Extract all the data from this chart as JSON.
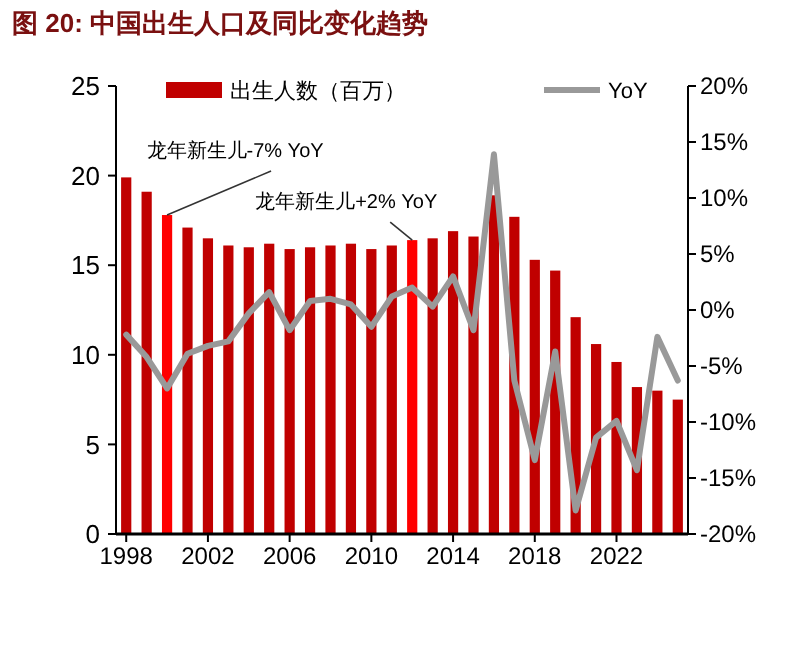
{
  "chart_data": {
    "type": "bar",
    "title": "图 20: 中国出生人口及同比变化趋势",
    "x": [
      1998,
      1999,
      2000,
      2001,
      2002,
      2003,
      2004,
      2005,
      2006,
      2007,
      2008,
      2009,
      2010,
      2011,
      2012,
      2013,
      2014,
      2015,
      2016,
      2017,
      2018,
      2019,
      2020,
      2021,
      2022,
      2023,
      2024,
      2025
    ],
    "series": [
      {
        "name": "出生人数（百万）",
        "color": "#c00000",
        "colors": [
          "#c00000",
          "#c00000",
          "#ff0000",
          "#c00000",
          "#c00000",
          "#c00000",
          "#c00000",
          "#c00000",
          "#c00000",
          "#c00000",
          "#c00000",
          "#c00000",
          "#c00000",
          "#c00000",
          "#ff0000",
          "#c00000",
          "#c00000",
          "#c00000",
          "#c00000",
          "#c00000",
          "#c00000",
          "#c00000",
          "#c00000",
          "#c00000",
          "#c00000",
          "#c00000",
          "#c00000",
          "#c00000"
        ],
        "values": [
          19.9,
          19.1,
          17.8,
          17.1,
          16.5,
          16.1,
          16.0,
          16.2,
          15.9,
          16.0,
          16.1,
          16.2,
          15.9,
          16.1,
          16.4,
          16.5,
          16.9,
          16.6,
          18.9,
          17.7,
          15.3,
          14.7,
          12.1,
          10.6,
          9.6,
          8.2,
          8.0,
          7.5
        ]
      },
      {
        "name": "YoY",
        "type": "line",
        "axis": "y2",
        "color": "#999999",
        "values": [
          -2.2,
          -4.2,
          -7.0,
          -3.9,
          -3.2,
          -2.8,
          -0.3,
          1.6,
          -1.8,
          0.8,
          1.0,
          0.5,
          -1.5,
          1.2,
          2.0,
          0.3,
          3.0,
          -1.8,
          13.9,
          -6.3,
          -13.4,
          -3.7,
          -17.9,
          -11.4,
          -9.9,
          -14.3,
          -2.4,
          -6.3
        ]
      }
    ],
    "xlim": [
      1997.5,
      2025.5
    ],
    "xticks": [
      1998,
      2002,
      2006,
      2010,
      2014,
      2018,
      2022
    ],
    "ylim": [
      0,
      25
    ],
    "yticks": [
      0,
      5,
      10,
      15,
      20,
      25
    ],
    "y2lim": [
      -20,
      20
    ],
    "y2ticks": [
      {
        "value": -20,
        "label": "-20%"
      },
      {
        "value": -15,
        "label": "-15%"
      },
      {
        "value": -10,
        "label": "-10%"
      },
      {
        "value": -5,
        "label": "-5%"
      },
      {
        "value": 0,
        "label": "0%"
      },
      {
        "value": 5,
        "label": "5%"
      },
      {
        "value": 10,
        "label": "10%"
      },
      {
        "value": 15,
        "label": "15%"
      },
      {
        "value": 20,
        "label": "20%"
      }
    ],
    "annotations": [
      {
        "text": "龙年新生儿-7% YoY",
        "x": 2000,
        "y": 17.8
      },
      {
        "text": "龙年新生儿+2% YoY",
        "x": 2012,
        "y": 16.4
      }
    ],
    "legend": "top",
    "grid": false
  }
}
